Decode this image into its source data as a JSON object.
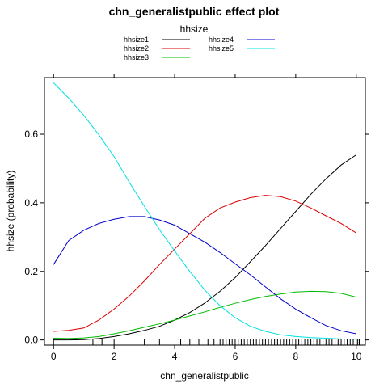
{
  "chart_data": {
    "type": "line",
    "title": "chn_generalistpublic effect plot",
    "xlabel": "chn_generalistpublic",
    "ylabel": "hhsize (probability)",
    "legend": {
      "title": "hhsize",
      "placement": "top-center",
      "columns": 2
    },
    "xlim": [
      -0.3,
      10.3
    ],
    "ylim": [
      -0.015,
      0.765
    ],
    "x_ticks": [
      0,
      2,
      4,
      6,
      8,
      10
    ],
    "x_tick_labels": [
      "0",
      "2",
      "4",
      "6",
      "8",
      "10"
    ],
    "y_ticks": [
      0.0,
      0.2,
      0.4,
      0.6
    ],
    "y_tick_labels": [
      "0.0",
      "0.2",
      "0.4",
      "0.6"
    ],
    "grid": false,
    "rug": true,
    "x": [
      0,
      0.5,
      1,
      1.5,
      2,
      2.5,
      3,
      3.5,
      4,
      4.5,
      5,
      5.5,
      6,
      6.5,
      7,
      7.5,
      8,
      8.5,
      9,
      9.5,
      10
    ],
    "series": [
      {
        "name": "hhsize1",
        "color": "#000000",
        "values": [
          0.0,
          0.0,
          0.001,
          0.004,
          0.01,
          0.018,
          0.028,
          0.04,
          0.058,
          0.08,
          0.108,
          0.142,
          0.182,
          0.228,
          0.275,
          0.325,
          0.375,
          0.425,
          0.47,
          0.51,
          0.54
        ]
      },
      {
        "name": "hhsize2",
        "color": "#dd0000",
        "values": [
          0.025,
          0.028,
          0.035,
          0.058,
          0.09,
          0.128,
          0.172,
          0.22,
          0.265,
          0.31,
          0.355,
          0.385,
          0.402,
          0.415,
          0.422,
          0.418,
          0.405,
          0.385,
          0.362,
          0.34,
          0.312
        ]
      },
      {
        "name": "hhsize3",
        "color": "#00bb00",
        "values": [
          0.005,
          0.004,
          0.006,
          0.01,
          0.018,
          0.027,
          0.037,
          0.047,
          0.058,
          0.07,
          0.082,
          0.095,
          0.107,
          0.118,
          0.127,
          0.134,
          0.14,
          0.142,
          0.141,
          0.136,
          0.125
        ]
      },
      {
        "name": "hhsize4",
        "color": "#0000cc",
        "values": [
          0.22,
          0.29,
          0.32,
          0.34,
          0.352,
          0.36,
          0.36,
          0.35,
          0.335,
          0.31,
          0.285,
          0.255,
          0.222,
          0.19,
          0.155,
          0.12,
          0.09,
          0.065,
          0.042,
          0.027,
          0.018
        ]
      },
      {
        "name": "hhsize5",
        "color": "#00e0e0",
        "values": [
          0.75,
          0.705,
          0.655,
          0.598,
          0.535,
          0.46,
          0.39,
          0.322,
          0.26,
          0.2,
          0.145,
          0.1,
          0.065,
          0.04,
          0.025,
          0.015,
          0.01,
          0.007,
          0.005,
          0.003,
          0.002
        ]
      }
    ],
    "rug_x": [
      0.0,
      1.3,
      1.6,
      2.0,
      3.0,
      3.5,
      4.2,
      4.5,
      4.8,
      5.0,
      5.1,
      5.3,
      5.5,
      5.6,
      5.7,
      5.8,
      5.9,
      6.0,
      6.1,
      6.2,
      6.3,
      6.4,
      6.5,
      6.6,
      6.7,
      6.8,
      6.9,
      7.0,
      7.1,
      7.2,
      7.3,
      7.4,
      7.5,
      7.6,
      7.7,
      7.8,
      7.9,
      8.0,
      8.1,
      8.2,
      8.3,
      8.4,
      8.5,
      8.6,
      8.7,
      8.8,
      8.9,
      9.0,
      9.1,
      9.2,
      9.3,
      9.4,
      9.5,
      9.6,
      9.7,
      9.8,
      9.9,
      10.0,
      10.05,
      10.1
    ]
  }
}
